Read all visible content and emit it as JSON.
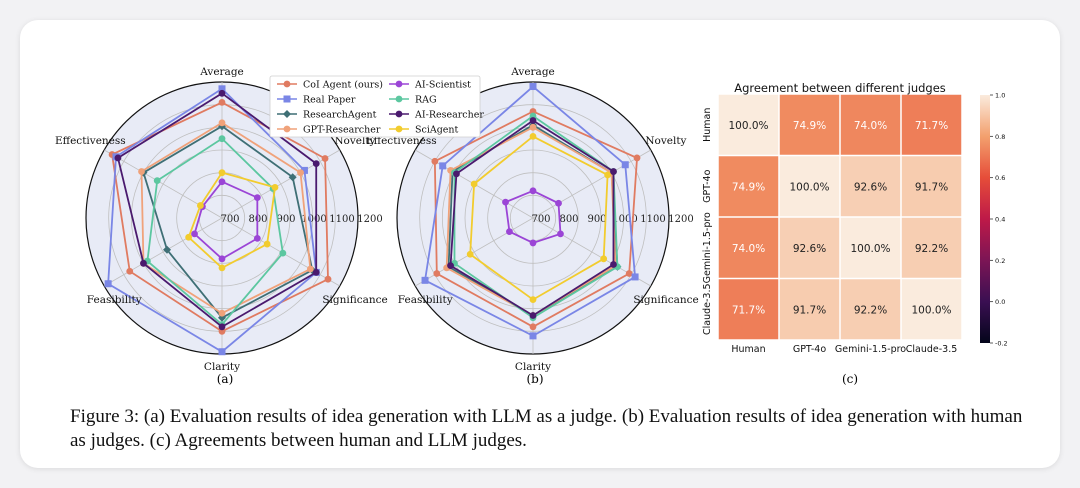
{
  "caption": "Figure 3: (a) Evaluation results of idea generation with LLM as a judge. (b) Evaluation results of idea generation with human as judges. (c) Agreements between human and LLM judges.",
  "chart_data": [
    {
      "type": "radar",
      "panel_label": "(a)",
      "axes": [
        "Average",
        "Novelty",
        "Significance",
        "Clarity",
        "Feasibility",
        "Effectiveness"
      ],
      "radial_ticks": [
        "700",
        "800",
        "900",
        "1000",
        "1100",
        "1200"
      ],
      "rlim": [
        600,
        1200
      ],
      "legend": [
        "CoI Agent (ours)",
        "Real Paper",
        "ResearchAgent",
        "GPT-Researcher",
        "AI-Scientist",
        "RAG",
        "AI-Researcher",
        "SciAgent"
      ],
      "series": [
        {
          "name": "CoI Agent (ours)",
          "color": "#e07b61",
          "marker": "circle",
          "values": [
            1110,
            1125,
            1140,
            1100,
            1070,
            1160
          ]
        },
        {
          "name": "Real Paper",
          "color": "#7a86e6",
          "marker": "square",
          "values": [
            1170,
            1020,
            1080,
            1190,
            1180,
            1140
          ]
        },
        {
          "name": "ResearchAgent",
          "color": "#3f6f75",
          "marker": "diamond",
          "values": [
            1005,
            960,
            1060,
            1040,
            880,
            1000
          ]
        },
        {
          "name": "GPT-Researcher",
          "color": "#f0a27a",
          "marker": "circle",
          "values": [
            1020,
            1000,
            1050,
            1020,
            1000,
            1010
          ]
        },
        {
          "name": "AI-Scientist",
          "color": "#9b45d6",
          "marker": "circle",
          "values": [
            760,
            780,
            780,
            780,
            740,
            700
          ]
        },
        {
          "name": "RAG",
          "color": "#5cc7a0",
          "marker": "circle",
          "values": [
            950,
            860,
            910,
            1070,
            980,
            930
          ]
        },
        {
          "name": "AI-Researcher",
          "color": "#4a1a6e",
          "marker": "circle",
          "values": [
            1150,
            1080,
            1080,
            1080,
            1000,
            1130
          ]
        },
        {
          "name": "SciAgent",
          "color": "#f2cc2e",
          "marker": "circle",
          "values": [
            800,
            870,
            830,
            820,
            770,
            710
          ]
        }
      ]
    },
    {
      "type": "radar",
      "panel_label": "(b)",
      "axes": [
        "Average",
        "Novelty",
        "Significance",
        "Clarity",
        "Feasibility",
        "Effectiveness"
      ],
      "radial_ticks": [
        "700",
        "800",
        "900",
        "1000",
        "1100",
        "1200"
      ],
      "rlim": [
        600,
        1200
      ],
      "series": [
        {
          "name": "CoI Agent (ours)",
          "color": "#e07b61",
          "marker": "circle",
          "values": [
            1070,
            1130,
            1090,
            1080,
            1090,
            1100
          ]
        },
        {
          "name": "Real Paper",
          "color": "#7a86e6",
          "marker": "square",
          "values": [
            1180,
            1070,
            1120,
            1120,
            1150,
            1060
          ]
        },
        {
          "name": "ResearchAgent",
          "color": "#3f6f75",
          "marker": "diamond",
          "values": [
            1010,
            1000,
            1030,
            1030,
            1030,
            1010
          ]
        },
        {
          "name": "GPT-Researcher",
          "color": "#f0a27a",
          "marker": "circle",
          "values": [
            1000,
            1000,
            1020,
            1030,
            1040,
            1020
          ]
        },
        {
          "name": "AI-Scientist",
          "color": "#9b45d6",
          "marker": "circle",
          "values": [
            720,
            730,
            740,
            710,
            720,
            740
          ]
        },
        {
          "name": "RAG",
          "color": "#5cc7a0",
          "marker": "circle",
          "values": [
            1050,
            1010,
            1030,
            1040,
            1000,
            1000
          ]
        },
        {
          "name": "AI-Researcher",
          "color": "#4a1a6e",
          "marker": "circle",
          "values": [
            1030,
            1010,
            1010,
            1030,
            1020,
            990
          ]
        },
        {
          "name": "SciAgent",
          "color": "#f2cc2e",
          "marker": "circle",
          "values": [
            960,
            980,
            960,
            960,
            920,
            900
          ]
        }
      ]
    },
    {
      "type": "heatmap",
      "panel_label": "(c)",
      "title": "Agreement between different judges",
      "rows": [
        "Human",
        "GPT-4o",
        "Gemini-1.5-pro",
        "Claude-3.5"
      ],
      "cols": [
        "Human",
        "GPT-4o",
        "Gemini-1.5-pro",
        "Claude-3.5"
      ],
      "values": [
        [
          100.0,
          74.9,
          74.0,
          71.7
        ],
        [
          74.9,
          100.0,
          92.6,
          91.7
        ],
        [
          74.0,
          92.6,
          100.0,
          92.2
        ],
        [
          71.7,
          91.7,
          92.2,
          100.0
        ]
      ],
      "cell_labels": [
        [
          "100.0%",
          "74.9%",
          "74.0%",
          "71.7%"
        ],
        [
          "74.9%",
          "100.0%",
          "92.6%",
          "91.7%"
        ],
        [
          "74.0%",
          "92.6%",
          "100.0%",
          "92.2%"
        ],
        [
          "71.7%",
          "91.7%",
          "92.2%",
          "100.0%"
        ]
      ],
      "colorbar_ticks": [
        "1.0",
        "0.8",
        "0.6",
        "0.4",
        "0.2",
        "0.0",
        "-0.2"
      ],
      "colorbar_range": [
        -0.2,
        1.0
      ]
    }
  ]
}
